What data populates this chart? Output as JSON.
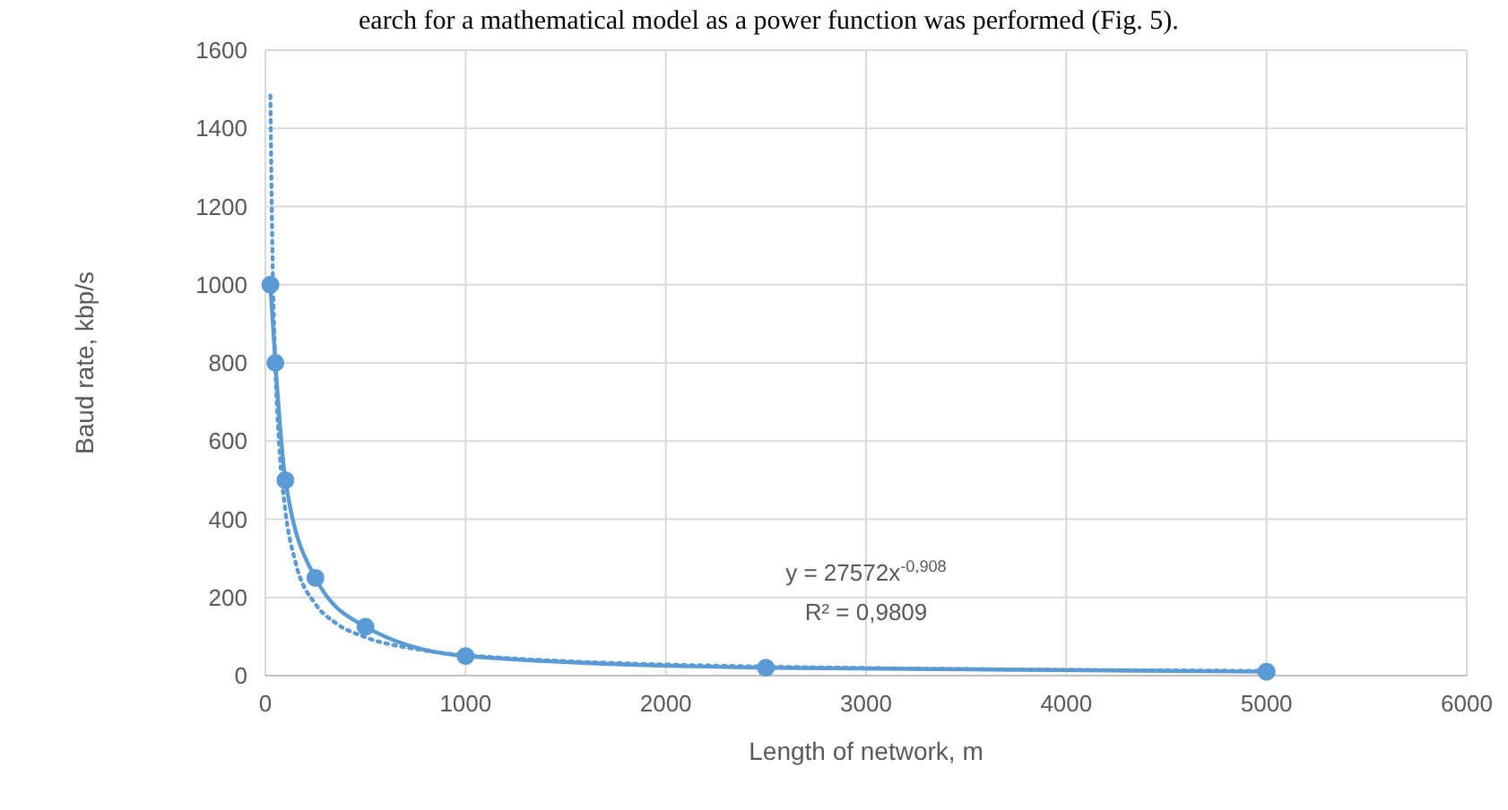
{
  "chart_data": {
    "type": "line",
    "xlabel": "Length of network, m",
    "ylabel": "Baud rate, kbp/s",
    "xlim": [
      0,
      6000
    ],
    "xticks": [
      0,
      1000,
      2000,
      3000,
      4000,
      5000,
      6000
    ],
    "ylim": [
      0,
      1600
    ],
    "yticks": [
      0,
      200,
      400,
      600,
      800,
      1000,
      1200,
      1400,
      1600
    ],
    "grid": true,
    "series": [
      {
        "color": "#5b9bd5",
        "marker": "circle",
        "line_style": "solid",
        "x": [
          25,
          50,
          100,
          250,
          500,
          1000,
          2500,
          5000
        ],
        "values": [
          1000,
          800,
          500,
          250,
          125,
          50,
          20,
          10
        ]
      },
      {
        "color": "#5b9bd5",
        "marker": "none",
        "line_style": "dotted",
        "x": [
          25,
          35,
          50,
          70,
          100,
          150,
          250,
          350,
          500,
          750,
          1000,
          2500,
          5000
        ],
        "values": [
          1484,
          1093,
          790,
          583,
          421,
          291,
          183,
          135,
          98,
          68,
          52,
          23,
          12
        ]
      }
    ],
    "annotations": [
      "earch for a mathematical model as a power function was performed (Fig. 5).",
      "y = 27572x$^{-0,908}$",
      "R² = 0,9809"
    ]
  }
}
